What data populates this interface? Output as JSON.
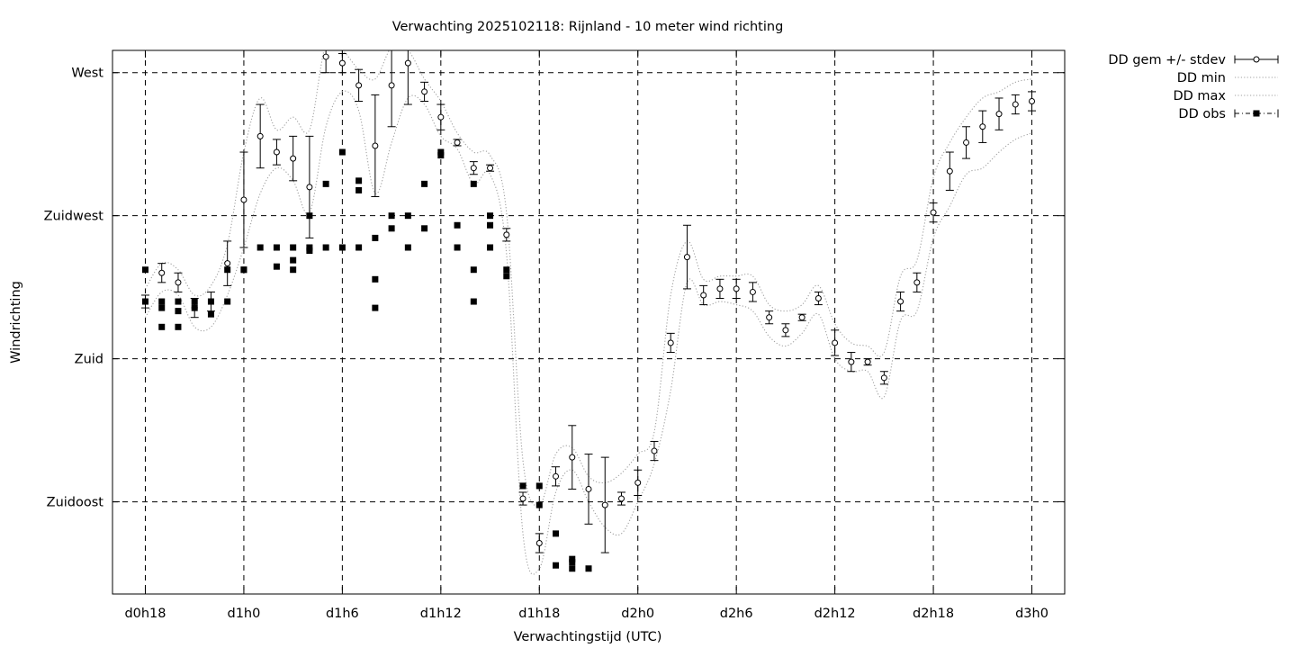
{
  "chart_data": {
    "type": "line",
    "title": "Verwachting 2025102118: Rijnland - 10 meter wind richting",
    "xlabel": "Verwachtingstijd (UTC)",
    "ylabel": "Windrichting",
    "x_unit": "hours since d0h0",
    "xlim": [
      16,
      74
    ],
    "ylim": [
      106,
      277
    ],
    "x_ticks": [
      {
        "value": 18,
        "label": "d0h18"
      },
      {
        "value": 24,
        "label": "d1h0"
      },
      {
        "value": 30,
        "label": "d1h6"
      },
      {
        "value": 36,
        "label": "d1h12"
      },
      {
        "value": 42,
        "label": "d1h18"
      },
      {
        "value": 48,
        "label": "d2h0"
      },
      {
        "value": 54,
        "label": "d2h6"
      },
      {
        "value": 60,
        "label": "d2h12"
      },
      {
        "value": 66,
        "label": "d2h18"
      },
      {
        "value": 72,
        "label": "d3h0"
      }
    ],
    "y_ticks": [
      {
        "value": 270,
        "label": "West"
      },
      {
        "value": 225,
        "label": "Zuidwest"
      },
      {
        "value": 180,
        "label": "Zuid"
      },
      {
        "value": 135,
        "label": "Zuidoost"
      }
    ],
    "grid": true,
    "legend_position": "outside-top-right",
    "series": [
      {
        "name": "DD gem +/- stdev",
        "style": "errorbars",
        "x": [
          18,
          19,
          20,
          21,
          22,
          23,
          24,
          25,
          26,
          27,
          28,
          29,
          30,
          31,
          32,
          33,
          34,
          35,
          36,
          37,
          38,
          39,
          40,
          41,
          42,
          43,
          44,
          45,
          46,
          47,
          48,
          49,
          50,
          51,
          52,
          53,
          54,
          55,
          56,
          57,
          58,
          59,
          60,
          61,
          62,
          63,
          64,
          65,
          66,
          67,
          68,
          69,
          70,
          71,
          72
        ],
        "y": [
          198,
          207,
          204,
          196,
          198,
          210,
          230,
          250,
          245,
          243,
          234,
          275,
          273,
          266,
          247,
          266,
          273,
          264,
          256,
          248,
          240,
          240,
          219,
          136,
          122,
          143,
          149,
          139,
          134,
          136,
          141,
          151,
          185,
          212,
          200,
          202,
          202,
          201,
          193,
          189,
          193,
          199,
          185,
          179,
          179,
          174,
          198,
          204,
          226,
          239,
          248,
          253,
          257,
          260,
          261
        ],
        "yerr": [
          2,
          3,
          3,
          3,
          3,
          7,
          15,
          10,
          4,
          7,
          16,
          5,
          3,
          5,
          16,
          13,
          13,
          3,
          4,
          1,
          2,
          1,
          2,
          2,
          3,
          3,
          10,
          11,
          15,
          2,
          4,
          3,
          3,
          10,
          3,
          3,
          3,
          3,
          2,
          2,
          1,
          2,
          4,
          3,
          1,
          2,
          3,
          3,
          3,
          6,
          5,
          5,
          5,
          3,
          3
        ]
      },
      {
        "name": "DD min",
        "style": "dotted",
        "x": [
          18,
          19,
          20,
          21,
          22,
          23,
          24,
          25,
          26,
          27,
          28,
          29,
          30,
          31,
          32,
          33,
          34,
          35,
          36,
          37,
          38,
          39,
          40,
          41,
          42,
          43,
          44,
          45,
          46,
          47,
          48,
          49,
          50,
          51,
          52,
          53,
          54,
          55,
          56,
          57,
          58,
          59,
          60,
          61,
          62,
          63,
          64,
          65,
          66,
          67,
          68,
          69,
          70,
          71,
          72
        ],
        "y": [
          193,
          201,
          200,
          190,
          190,
          200,
          215,
          232,
          240,
          236,
          226,
          253,
          264,
          258,
          232,
          248,
          262,
          260,
          250,
          246,
          235,
          238,
          213,
          125,
          114,
          138,
          145,
          135,
          127,
          125,
          135,
          147,
          170,
          204,
          197,
          198,
          197,
          195,
          187,
          184,
          188,
          194,
          180,
          176,
          176,
          168,
          192,
          195,
          218,
          228,
          238,
          240,
          245,
          249,
          251
        ]
      },
      {
        "name": "DD max",
        "style": "dotted",
        "x": [
          18,
          19,
          20,
          21,
          22,
          23,
          24,
          25,
          26,
          27,
          28,
          29,
          30,
          31,
          32,
          33,
          34,
          35,
          36,
          37,
          38,
          39,
          40,
          41,
          42,
          43,
          44,
          45,
          46,
          47,
          48,
          49,
          50,
          51,
          52,
          53,
          54,
          55,
          56,
          57,
          58,
          59,
          60,
          61,
          62,
          63,
          64,
          65,
          66,
          67,
          68,
          69,
          70,
          71,
          72
        ],
        "y": [
          202,
          210,
          208,
          200,
          203,
          216,
          245,
          262,
          252,
          256,
          252,
          279,
          277,
          271,
          268,
          278,
          277,
          268,
          261,
          251,
          245,
          244,
          226,
          148,
          134,
          150,
          152,
          143,
          141,
          144,
          150,
          157,
          200,
          217,
          205,
          206,
          206,
          206,
          197,
          195,
          197,
          203,
          191,
          185,
          184,
          182,
          206,
          211,
          237,
          248,
          256,
          262,
          264,
          267,
          268
        ]
      },
      {
        "name": "DD obs",
        "style": "points",
        "x": [
          18,
          18,
          19,
          19,
          19,
          20,
          20,
          20,
          21,
          21,
          22,
          22,
          23,
          23,
          24,
          24,
          25,
          26,
          26,
          27,
          27,
          27,
          28,
          28,
          28,
          29,
          29,
          30,
          30,
          31,
          31,
          31,
          32,
          32,
          32,
          33,
          33,
          34,
          34,
          35,
          35,
          36,
          36,
          37,
          37,
          38,
          38,
          38,
          39,
          39,
          39,
          40,
          40,
          41,
          41,
          42,
          42,
          43,
          43,
          44,
          44,
          44,
          45
        ],
        "y": [
          208,
          198,
          198,
          196,
          190,
          198,
          195,
          190,
          198,
          196,
          198,
          194,
          208,
          198,
          208,
          208,
          215,
          215,
          209,
          208,
          211,
          215,
          215,
          225,
          214,
          215,
          235,
          215,
          245,
          215,
          236,
          233,
          205,
          218,
          196,
          225,
          221,
          225,
          215,
          235,
          221,
          245,
          244,
          215,
          222,
          208,
          198,
          235,
          225,
          222,
          215,
          206,
          208,
          140,
          140,
          140,
          134,
          125,
          115,
          114,
          117,
          116,
          114
        ],
        "note": "observed points in degrees"
      }
    ]
  }
}
